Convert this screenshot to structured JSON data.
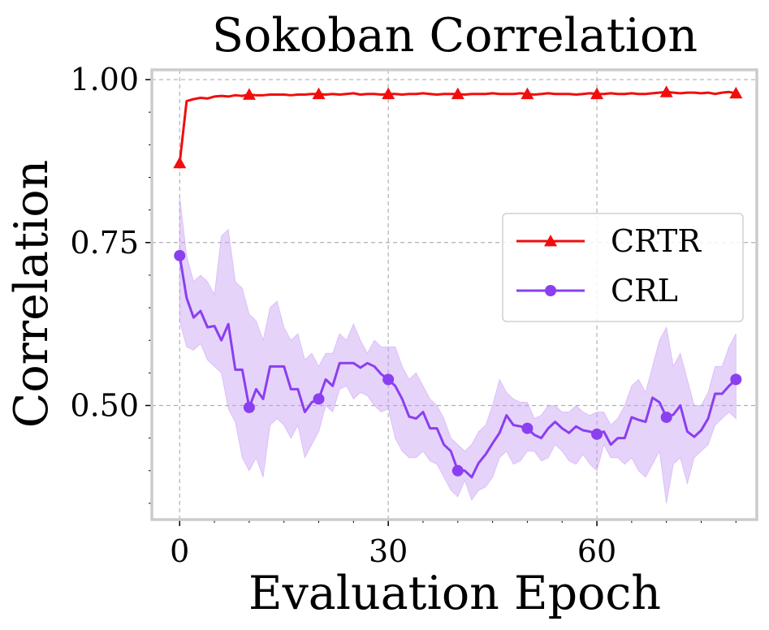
{
  "chart_data": {
    "type": "line",
    "title": "Sokoban Correlation",
    "xlabel": "Evaluation Epoch",
    "ylabel": "Correlation",
    "xlim": [
      -4,
      83
    ],
    "ylim": [
      0.325,
      1.015
    ],
    "xticks": [
      0,
      30,
      60
    ],
    "xtick_labels": [
      "0",
      "30",
      "60"
    ],
    "yticks": [
      0.5,
      0.75,
      1.0
    ],
    "ytick_labels": [
      "0.50",
      "0.75",
      "1.00"
    ],
    "grid": true,
    "legend_position": "center-right",
    "series": [
      {
        "name": "CRTR",
        "color": "#f20d0d",
        "marker": "triangle",
        "marker_every": 10,
        "x": [
          0,
          1,
          2,
          3,
          4,
          5,
          6,
          7,
          8,
          9,
          10,
          11,
          12,
          13,
          14,
          15,
          16,
          17,
          18,
          19,
          20,
          21,
          22,
          23,
          24,
          25,
          26,
          27,
          28,
          29,
          30,
          31,
          32,
          33,
          34,
          35,
          36,
          37,
          38,
          39,
          40,
          41,
          42,
          43,
          44,
          45,
          46,
          47,
          48,
          49,
          50,
          51,
          52,
          53,
          54,
          55,
          56,
          57,
          58,
          59,
          60,
          61,
          62,
          63,
          64,
          65,
          66,
          67,
          68,
          69,
          70,
          71,
          72,
          73,
          74,
          75,
          76,
          77,
          78,
          79,
          80
        ],
        "values": [
          0.872,
          0.967,
          0.97,
          0.972,
          0.971,
          0.974,
          0.975,
          0.974,
          0.976,
          0.975,
          0.977,
          0.976,
          0.976,
          0.977,
          0.977,
          0.977,
          0.976,
          0.977,
          0.977,
          0.978,
          0.978,
          0.977,
          0.978,
          0.977,
          0.978,
          0.979,
          0.977,
          0.978,
          0.978,
          0.977,
          0.978,
          0.978,
          0.977,
          0.978,
          0.978,
          0.979,
          0.978,
          0.977,
          0.978,
          0.978,
          0.978,
          0.977,
          0.978,
          0.978,
          0.978,
          0.979,
          0.978,
          0.978,
          0.978,
          0.979,
          0.978,
          0.977,
          0.978,
          0.979,
          0.978,
          0.978,
          0.978,
          0.977,
          0.978,
          0.979,
          0.978,
          0.978,
          0.979,
          0.978,
          0.978,
          0.979,
          0.978,
          0.978,
          0.979,
          0.98,
          0.981,
          0.98,
          0.979,
          0.98,
          0.98,
          0.979,
          0.98,
          0.978,
          0.98,
          0.981,
          0.979
        ],
        "lower": [],
        "upper": []
      },
      {
        "name": "CRL",
        "color": "#8a3ff0",
        "fill_color": "#c79ef5",
        "marker": "circle",
        "marker_every": 10,
        "x": [
          0,
          1,
          2,
          3,
          4,
          5,
          6,
          7,
          8,
          9,
          10,
          11,
          12,
          13,
          14,
          15,
          16,
          17,
          18,
          19,
          20,
          21,
          22,
          23,
          24,
          25,
          26,
          27,
          28,
          29,
          30,
          31,
          32,
          33,
          34,
          35,
          36,
          37,
          38,
          39,
          40,
          41,
          42,
          43,
          44,
          45,
          46,
          47,
          48,
          49,
          50,
          51,
          52,
          53,
          54,
          55,
          56,
          57,
          58,
          59,
          60,
          61,
          62,
          63,
          64,
          65,
          66,
          67,
          68,
          69,
          70,
          71,
          72,
          73,
          74,
          75,
          76,
          77,
          78,
          79,
          80
        ],
        "values": [
          0.73,
          0.665,
          0.635,
          0.645,
          0.62,
          0.622,
          0.6,
          0.625,
          0.555,
          0.555,
          0.497,
          0.525,
          0.51,
          0.56,
          0.56,
          0.56,
          0.525,
          0.525,
          0.49,
          0.505,
          0.51,
          0.54,
          0.53,
          0.565,
          0.565,
          0.565,
          0.558,
          0.565,
          0.56,
          0.548,
          0.54,
          0.53,
          0.51,
          0.483,
          0.48,
          0.49,
          0.465,
          0.465,
          0.44,
          0.43,
          0.4,
          0.4,
          0.39,
          0.412,
          0.425,
          0.442,
          0.458,
          0.485,
          0.47,
          0.468,
          0.465,
          0.455,
          0.45,
          0.465,
          0.475,
          0.465,
          0.458,
          0.468,
          0.462,
          0.46,
          0.456,
          0.46,
          0.44,
          0.45,
          0.45,
          0.482,
          0.478,
          0.475,
          0.512,
          0.505,
          0.482,
          0.486,
          0.5,
          0.46,
          0.452,
          0.462,
          0.48,
          0.518,
          0.518,
          0.53,
          0.54
        ],
        "lower": [
          0.63,
          0.59,
          0.585,
          0.595,
          0.57,
          0.56,
          0.55,
          0.495,
          0.475,
          0.42,
          0.4,
          0.42,
          0.39,
          0.47,
          0.48,
          0.47,
          0.45,
          0.47,
          0.42,
          0.44,
          0.46,
          0.5,
          0.49,
          0.525,
          0.53,
          0.51,
          0.52,
          0.515,
          0.5,
          0.49,
          0.495,
          0.45,
          0.43,
          0.42,
          0.42,
          0.43,
          0.415,
          0.41,
          0.39,
          0.37,
          0.36,
          0.385,
          0.355,
          0.37,
          0.375,
          0.39,
          0.42,
          0.43,
          0.41,
          0.415,
          0.43,
          0.43,
          0.415,
          0.42,
          0.44,
          0.43,
          0.415,
          0.41,
          0.425,
          0.41,
          0.4,
          0.44,
          0.42,
          0.42,
          0.41,
          0.42,
          0.4,
          0.39,
          0.41,
          0.43,
          0.35,
          0.41,
          0.42,
          0.38,
          0.42,
          0.43,
          0.44,
          0.47,
          0.48,
          0.49,
          0.48
        ],
        "upper": [
          0.82,
          0.73,
          0.69,
          0.7,
          0.69,
          0.67,
          0.76,
          0.77,
          0.69,
          0.68,
          0.64,
          0.63,
          0.6,
          0.65,
          0.66,
          0.62,
          0.6,
          0.61,
          0.57,
          0.58,
          0.56,
          0.58,
          0.58,
          0.61,
          0.6,
          0.625,
          0.6,
          0.58,
          0.6,
          0.59,
          0.59,
          0.59,
          0.56,
          0.54,
          0.55,
          0.53,
          0.51,
          0.5,
          0.48,
          0.45,
          0.44,
          0.43,
          0.44,
          0.46,
          0.47,
          0.5,
          0.54,
          0.52,
          0.51,
          0.505,
          0.505,
          0.48,
          0.485,
          0.5,
          0.5,
          0.49,
          0.49,
          0.5,
          0.49,
          0.485,
          0.49,
          0.49,
          0.47,
          0.48,
          0.5,
          0.53,
          0.54,
          0.52,
          0.56,
          0.6,
          0.62,
          0.56,
          0.58,
          0.54,
          0.5,
          0.5,
          0.52,
          0.56,
          0.56,
          0.59,
          0.61
        ]
      }
    ]
  }
}
